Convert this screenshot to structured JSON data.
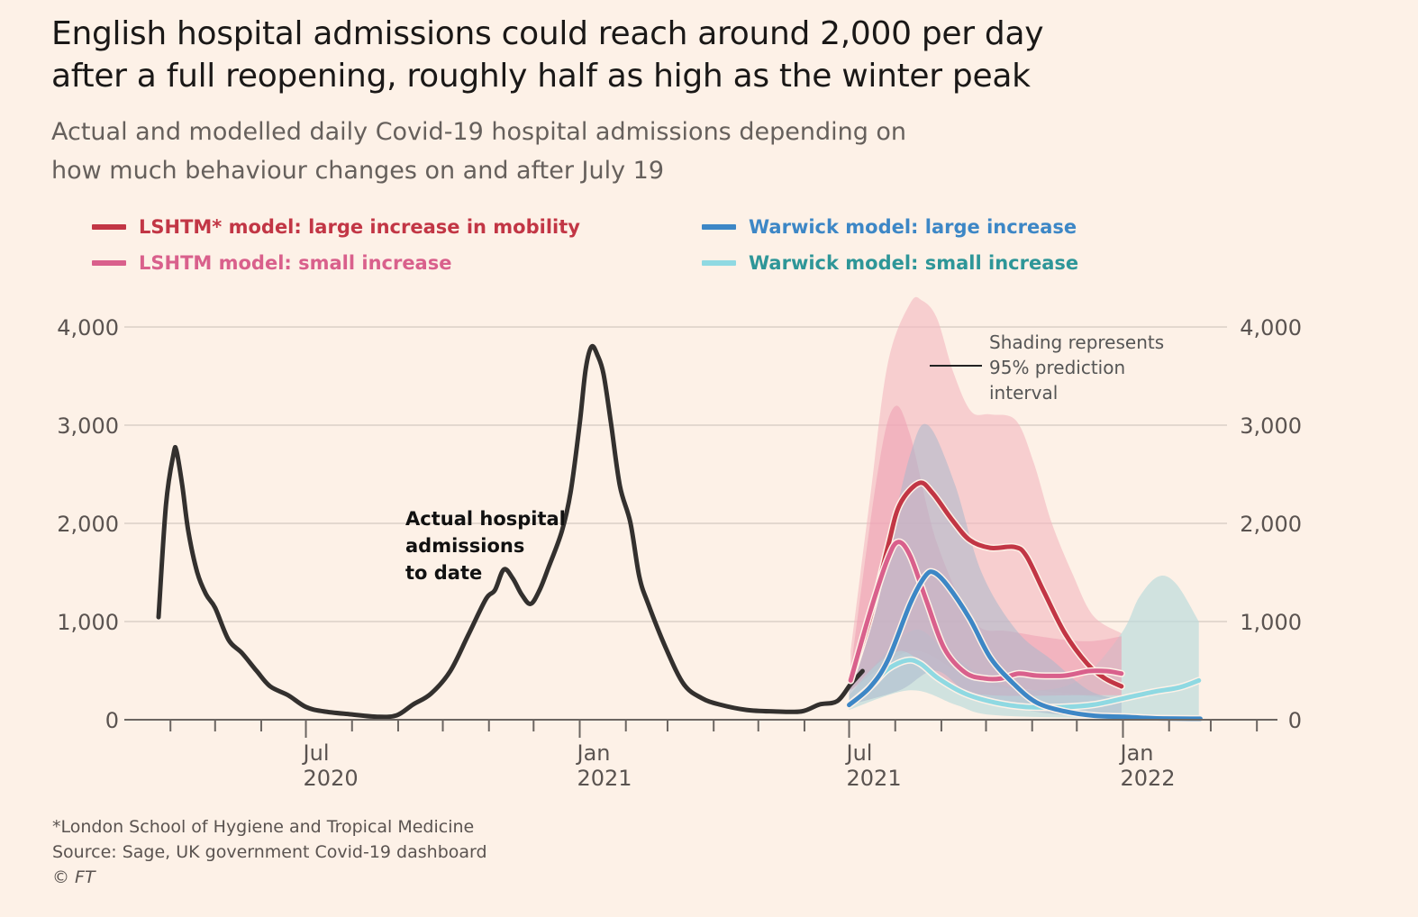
{
  "chart_data": {
    "type": "line",
    "title": "English hospital admissions could reach around 2,000 per day after a full reopening, roughly half as high as the winter peak",
    "subtitle": "Actual and modelled daily Covid-19 hospital admissions depending on how much behaviour changes on and after July 19",
    "ylim": [
      0,
      4000
    ],
    "yticks": [
      "0",
      "1,000",
      "2,000",
      "3,000",
      "4,000"
    ],
    "ytick_values": [
      0,
      1000,
      2000,
      3000,
      4000
    ],
    "xlim": [
      "2020-03-01",
      "2022-04-15"
    ],
    "xtick_labels": [
      {
        "month": "Jul",
        "year": "2020",
        "date": "2020-07-01"
      },
      {
        "month": "Jan",
        "year": "2021",
        "date": "2021-01-01"
      },
      {
        "month": "Jul",
        "year": "2021",
        "date": "2021-07-01"
      },
      {
        "month": "Jan",
        "year": "2022",
        "date": "2022-01-01"
      }
    ],
    "grid": true,
    "legend_placement": "top",
    "legend": [
      {
        "label": "LSHTM* model: large increase in mobility",
        "color": "#c23645",
        "series": "lshtm_large"
      },
      {
        "label": "LSHTM model: small increase",
        "color": "#d9608c",
        "series": "lshtm_small"
      },
      {
        "label": "Warwick model: large increase",
        "color": "#3d87c6",
        "series": "warwick_large"
      },
      {
        "label": "Warwick model: small increase",
        "color": "#8fd9e2",
        "text_color": "#2e9698",
        "series": "warwick_small"
      }
    ],
    "annotations": {
      "actual": [
        "Actual hospital",
        "admissions",
        "to date"
      ],
      "shading": [
        "Shading represents",
        "95% prediction",
        "interval"
      ]
    },
    "series": [
      {
        "id": "actual",
        "color": "#33302e",
        "points": [
          [
            "2020-03-24",
            1045
          ],
          [
            "2020-03-29",
            2190
          ],
          [
            "2020-04-03",
            2700
          ],
          [
            "2020-04-05",
            2740
          ],
          [
            "2020-04-09",
            2380
          ],
          [
            "2020-04-13",
            1920
          ],
          [
            "2020-04-19",
            1500
          ],
          [
            "2020-04-25",
            1275
          ],
          [
            "2020-05-01",
            1140
          ],
          [
            "2020-05-10",
            815
          ],
          [
            "2020-05-19",
            680
          ],
          [
            "2020-05-29",
            495
          ],
          [
            "2020-06-07",
            340
          ],
          [
            "2020-06-19",
            250
          ],
          [
            "2020-07-01",
            130
          ],
          [
            "2020-07-13",
            85
          ],
          [
            "2020-07-31",
            55
          ],
          [
            "2020-08-18",
            30
          ],
          [
            "2020-08-31",
            45
          ],
          [
            "2020-09-11",
            155
          ],
          [
            "2020-09-23",
            265
          ],
          [
            "2020-10-06",
            495
          ],
          [
            "2020-10-18",
            860
          ],
          [
            "2020-10-30",
            1230
          ],
          [
            "2020-11-05",
            1320
          ],
          [
            "2020-11-11",
            1530
          ],
          [
            "2020-11-17",
            1440
          ],
          [
            "2020-11-23",
            1275
          ],
          [
            "2020-11-29",
            1180
          ],
          [
            "2020-12-05",
            1320
          ],
          [
            "2020-12-11",
            1550
          ],
          [
            "2020-12-20",
            1920
          ],
          [
            "2020-12-26",
            2330
          ],
          [
            "2021-01-01",
            3020
          ],
          [
            "2021-01-05",
            3570
          ],
          [
            "2021-01-09",
            3800
          ],
          [
            "2021-01-13",
            3710
          ],
          [
            "2021-01-17",
            3520
          ],
          [
            "2021-01-22",
            3020
          ],
          [
            "2021-01-28",
            2380
          ],
          [
            "2021-02-04",
            2010
          ],
          [
            "2021-02-10",
            1460
          ],
          [
            "2021-02-16",
            1180
          ],
          [
            "2021-02-28",
            725
          ],
          [
            "2021-03-12",
            360
          ],
          [
            "2021-03-24",
            220
          ],
          [
            "2021-04-05",
            155
          ],
          [
            "2021-04-23",
            100
          ],
          [
            "2021-05-11",
            85
          ],
          [
            "2021-05-30",
            85
          ],
          [
            "2021-06-11",
            155
          ],
          [
            "2021-06-23",
            190
          ],
          [
            "2021-07-02",
            360
          ],
          [
            "2021-07-10",
            495
          ]
        ]
      },
      {
        "id": "lshtm_large",
        "color": "#c23645",
        "band_color": "#f4b7bf",
        "band_opacity": 0.6,
        "points": [
          [
            "2021-07-02",
            400
          ],
          [
            "2021-07-15",
            1030
          ],
          [
            "2021-07-27",
            1760
          ],
          [
            "2021-08-04",
            2190
          ],
          [
            "2021-08-17",
            2410
          ],
          [
            "2021-08-26",
            2310
          ],
          [
            "2021-09-08",
            2040
          ],
          [
            "2021-09-20",
            1830
          ],
          [
            "2021-10-04",
            1750
          ],
          [
            "2021-10-20",
            1760
          ],
          [
            "2021-10-28",
            1670
          ],
          [
            "2021-11-09",
            1300
          ],
          [
            "2021-11-23",
            880
          ],
          [
            "2021-12-08",
            570
          ],
          [
            "2021-12-20",
            420
          ],
          [
            "2021-12-31",
            340
          ]
        ],
        "band_upper": [
          [
            "2021-07-02",
            700
          ],
          [
            "2021-07-15",
            2250
          ],
          [
            "2021-07-27",
            3630
          ],
          [
            "2021-08-11",
            4240
          ],
          [
            "2021-08-19",
            4270
          ],
          [
            "2021-08-29",
            4090
          ],
          [
            "2021-09-09",
            3540
          ],
          [
            "2021-09-21",
            3140
          ],
          [
            "2021-10-04",
            3110
          ],
          [
            "2021-10-21",
            3050
          ],
          [
            "2021-11-02",
            2620
          ],
          [
            "2021-11-14",
            2010
          ],
          [
            "2021-11-28",
            1490
          ],
          [
            "2021-12-12",
            1060
          ],
          [
            "2021-12-31",
            880
          ]
        ],
        "band_lower": [
          [
            "2021-07-02",
            300
          ],
          [
            "2021-08-11",
            700
          ],
          [
            "2021-09-11",
            500
          ],
          [
            "2021-10-04",
            350
          ],
          [
            "2021-11-04",
            300
          ],
          [
            "2021-12-04",
            250
          ],
          [
            "2021-12-31",
            200
          ]
        ]
      },
      {
        "id": "warwick_small",
        "color": "#8fd9e2",
        "band_color": "#bcdcdc",
        "band_opacity": 0.7,
        "points": [
          [
            "2021-07-01",
            150
          ],
          [
            "2021-07-15",
            330
          ],
          [
            "2021-07-27",
            515
          ],
          [
            "2021-08-09",
            605
          ],
          [
            "2021-08-18",
            570
          ],
          [
            "2021-08-30",
            420
          ],
          [
            "2021-09-17",
            265
          ],
          [
            "2021-10-07",
            175
          ],
          [
            "2021-10-28",
            130
          ],
          [
            "2021-11-23",
            130
          ],
          [
            "2021-12-13",
            155
          ],
          [
            "2022-01-02",
            220
          ],
          [
            "2022-01-22",
            285
          ],
          [
            "2022-02-08",
            330
          ],
          [
            "2022-02-21",
            400
          ]
        ],
        "band_upper": [
          [
            "2021-07-01",
            250
          ],
          [
            "2021-08-11",
            900
          ],
          [
            "2021-09-04",
            700
          ],
          [
            "2021-10-04",
            400
          ],
          [
            "2021-11-04",
            300
          ],
          [
            "2021-12-04",
            420
          ],
          [
            "2021-12-31",
            880
          ],
          [
            "2022-01-12",
            1250
          ],
          [
            "2022-01-25",
            1460
          ],
          [
            "2022-02-06",
            1380
          ],
          [
            "2022-02-21",
            1000
          ]
        ],
        "band_lower": [
          [
            "2021-07-01",
            100
          ],
          [
            "2021-08-11",
            300
          ],
          [
            "2021-09-11",
            150
          ],
          [
            "2021-10-04",
            50
          ],
          [
            "2021-12-04",
            20
          ],
          [
            "2022-02-21",
            0
          ]
        ]
      },
      {
        "id": "lshtm_small",
        "color": "#d9608c",
        "band_color": "#ee9fb2",
        "band_opacity": 0.55,
        "points": [
          [
            "2021-07-02",
            400
          ],
          [
            "2021-07-15",
            1090
          ],
          [
            "2021-07-27",
            1640
          ],
          [
            "2021-08-03",
            1810
          ],
          [
            "2021-08-11",
            1670
          ],
          [
            "2021-08-22",
            1210
          ],
          [
            "2021-09-03",
            725
          ],
          [
            "2021-09-17",
            480
          ],
          [
            "2021-09-30",
            420
          ],
          [
            "2021-10-11",
            420
          ],
          [
            "2021-10-23",
            470
          ],
          [
            "2021-11-04",
            450
          ],
          [
            "2021-11-23",
            450
          ],
          [
            "2021-12-09",
            495
          ],
          [
            "2021-12-21",
            495
          ],
          [
            "2021-12-31",
            470
          ]
        ],
        "band_upper": [
          [
            "2021-07-02",
            500
          ],
          [
            "2021-07-20",
            2500
          ],
          [
            "2021-07-31",
            3180
          ],
          [
            "2021-08-11",
            2900
          ],
          [
            "2021-08-29",
            1800
          ],
          [
            "2021-09-23",
            1000
          ],
          [
            "2021-10-17",
            900
          ],
          [
            "2021-12-04",
            800
          ],
          [
            "2021-12-31",
            850
          ]
        ],
        "band_lower": [
          [
            "2021-07-02",
            300
          ],
          [
            "2021-08-04",
            700
          ],
          [
            "2021-09-04",
            350
          ],
          [
            "2021-10-04",
            250
          ],
          [
            "2021-12-04",
            250
          ],
          [
            "2021-12-31",
            250
          ]
        ]
      },
      {
        "id": "warwick_large",
        "color": "#3d87c6",
        "band_color": "#a9b8cc",
        "band_opacity": 0.55,
        "points": [
          [
            "2021-07-01",
            150
          ],
          [
            "2021-07-15",
            330
          ],
          [
            "2021-07-27",
            605
          ],
          [
            "2021-08-11",
            1180
          ],
          [
            "2021-08-21",
            1460
          ],
          [
            "2021-08-27",
            1500
          ],
          [
            "2021-09-05",
            1370
          ],
          [
            "2021-09-20",
            1030
          ],
          [
            "2021-10-04",
            630
          ],
          [
            "2021-10-20",
            360
          ],
          [
            "2021-11-04",
            175
          ],
          [
            "2021-11-23",
            85
          ],
          [
            "2021-12-13",
            40
          ],
          [
            "2022-01-02",
            30
          ],
          [
            "2022-01-22",
            15
          ],
          [
            "2022-02-22",
            10
          ]
        ],
        "band_upper": [
          [
            "2021-07-01",
            300
          ],
          [
            "2021-07-23",
            1500
          ],
          [
            "2021-08-11",
            2700
          ],
          [
            "2021-08-23",
            3000
          ],
          [
            "2021-09-10",
            2400
          ],
          [
            "2021-09-28",
            1500
          ],
          [
            "2021-10-22",
            900
          ],
          [
            "2021-11-15",
            600
          ],
          [
            "2021-12-09",
            300
          ],
          [
            "2021-12-31",
            200
          ]
        ],
        "band_lower": [
          [
            "2021-07-01",
            150
          ],
          [
            "2021-08-04",
            300
          ],
          [
            "2021-08-28",
            500
          ],
          [
            "2021-09-22",
            250
          ],
          [
            "2021-11-04",
            80
          ],
          [
            "2021-12-31",
            10
          ]
        ]
      }
    ]
  },
  "footer": {
    "note": "*London School of Hygiene and Tropical Medicine",
    "source": "Source: Sage, UK government Covid-19 dashboard",
    "credit": "© FT"
  }
}
